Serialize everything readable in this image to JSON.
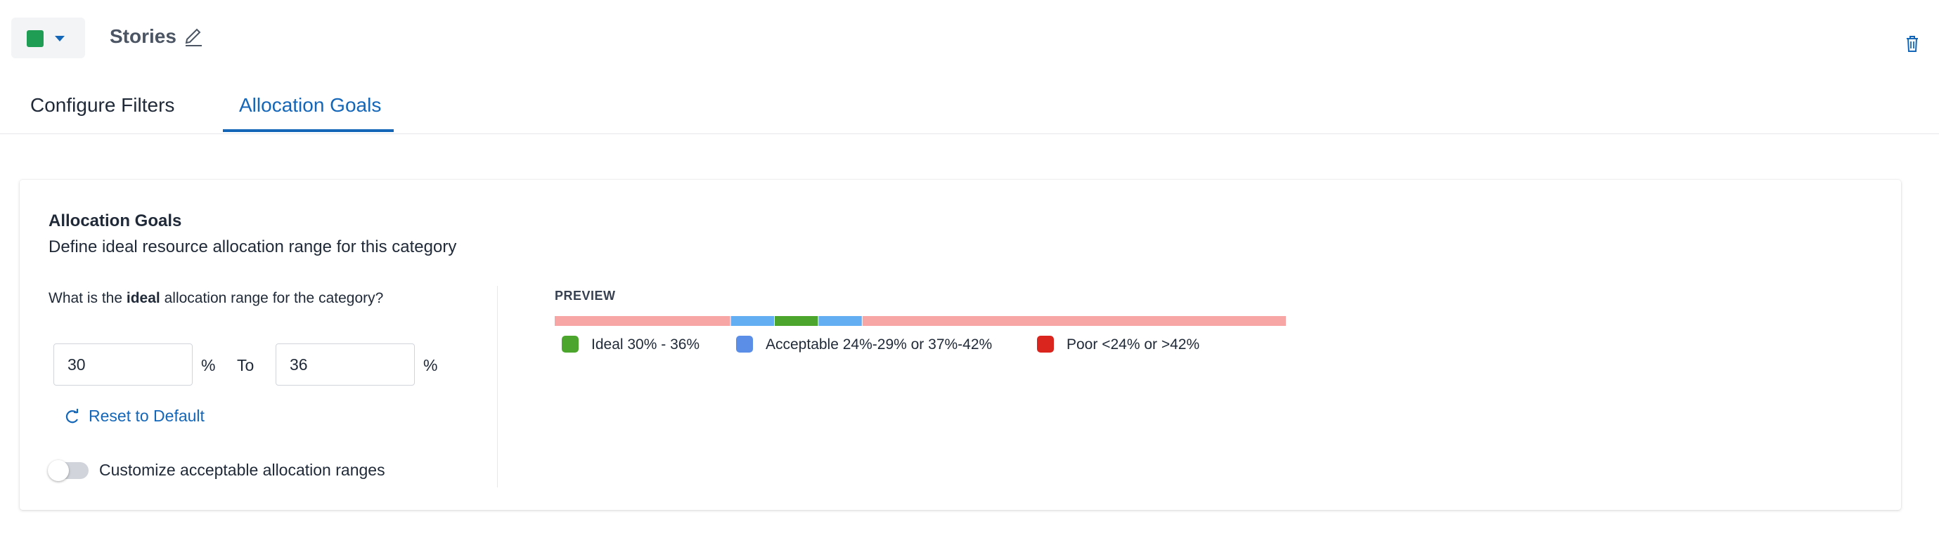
{
  "header": {
    "category_color": "#1f9d55",
    "category_name": "Stories",
    "icons": {
      "caret": "chevron-down-icon",
      "edit": "pencil-icon",
      "delete": "trash-icon"
    }
  },
  "tabs": [
    {
      "label": "Configure Filters",
      "active": false
    },
    {
      "label": "Allocation Goals",
      "active": true
    }
  ],
  "card": {
    "title": "Allocation Goals",
    "subtitle": "Define ideal resource allocation range for this category",
    "question_prefix": "What is the",
    "question_bold": "ideal",
    "question_suffix": "allocation range for the category?",
    "min_value": "30",
    "max_value": "36",
    "percent_sign": "%",
    "to_label": "To",
    "reset_label": "Reset to Default",
    "toggle_label": "Customize acceptable allocation ranges",
    "toggle_on": false
  },
  "preview": {
    "title": "PREVIEW",
    "segments": [
      {
        "level": "poor",
        "from": 0,
        "to": 24,
        "color": "#f8a5a5"
      },
      {
        "level": "acceptable",
        "from": 24,
        "to": 30,
        "color": "#63aef2"
      },
      {
        "level": "ideal",
        "from": 30,
        "to": 36,
        "color": "#4ca52c"
      },
      {
        "level": "acceptable",
        "from": 36,
        "to": 42,
        "color": "#63aef2"
      },
      {
        "level": "poor",
        "from": 42,
        "to": 100,
        "color": "#f8a5a5"
      }
    ],
    "legend": [
      {
        "label": "Ideal 30% - 36%",
        "color": "#4ca52c"
      },
      {
        "label": "Acceptable 24%-29% or 37%-42%",
        "color": "#5b8ee6"
      },
      {
        "label": "Poor <24% or >42%",
        "color": "#d9251d"
      }
    ]
  }
}
